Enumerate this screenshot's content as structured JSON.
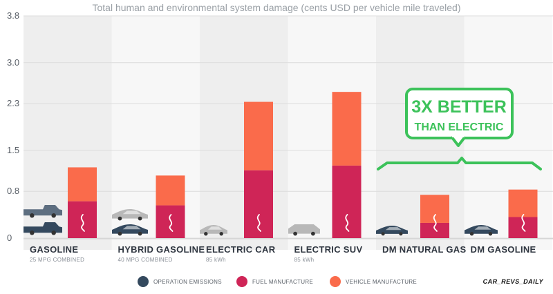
{
  "chart_data": {
    "type": "bar",
    "stacked": true,
    "title": "Total human and environmental system damage (cents USD per vehicle mile traveled)",
    "categories": [
      "GASOLINE",
      "HYBRID GASOLINE",
      "ELECTRIC CAR",
      "ELECTRIC SUV",
      "DM NATURAL GAS",
      "DM GASOLINE"
    ],
    "subtitles": [
      "25 MPG COMBINED",
      "40 MPG COMBINED",
      "85 kWh",
      "85 kWh",
      "",
      ""
    ],
    "series": [
      {
        "name": "OPERATION EMISSIONS",
        "color": "#34495e",
        "values": [
          0,
          0,
          0,
          0,
          0,
          0
        ]
      },
      {
        "name": "FUEL MANUFACTURE",
        "color": "#cf2557",
        "values": [
          0.63,
          0.56,
          1.16,
          1.24,
          0.26,
          0.36
        ]
      },
      {
        "name": "VEHICLE MANUFACTURE",
        "color": "#fa6b4b",
        "values": [
          0.58,
          0.51,
          1.17,
          1.26,
          0.48,
          0.47
        ]
      }
    ],
    "yticks": [
      "0",
      "0.8",
      "1.5",
      "2.3",
      "3.0",
      "3.8"
    ],
    "ylim": [
      0,
      3.8
    ],
    "grid": true,
    "legend_position": "bottom",
    "annotation": {
      "line1": "3X BETTER",
      "line2": "THAN ELECTRIC",
      "color": "#3cc25a"
    },
    "vehicle_icons": [
      "pickup-truck",
      "sedan",
      "hatchback",
      "suv",
      "hatchback",
      "hatchback"
    ]
  },
  "watermark": "CAR_REVS_DAILY"
}
